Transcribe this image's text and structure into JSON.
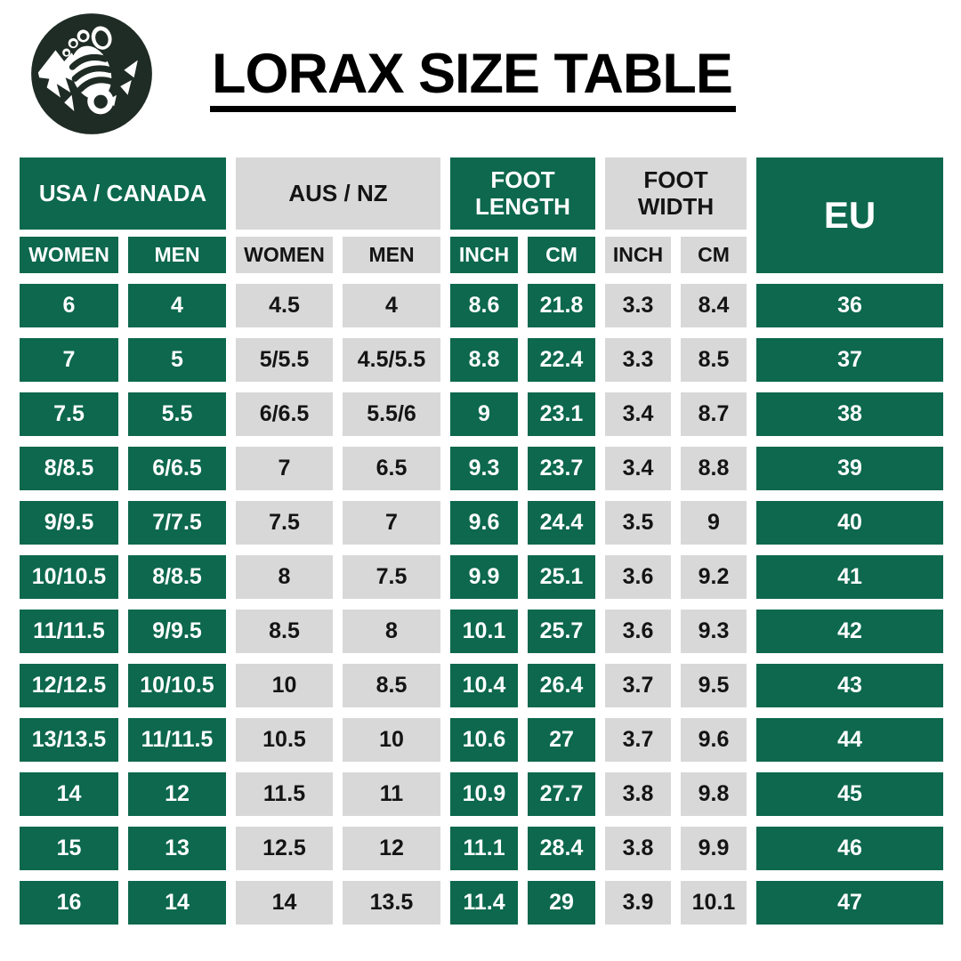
{
  "page": {
    "title": "LORAX SIZE TABLE"
  },
  "logo": {
    "icon": "barefoot-mountains-logo-icon"
  },
  "colors": {
    "green": "#0d684d",
    "gray": "#d8d8d8",
    "logo_dark": "#1f2b25",
    "text_on_green": "#ffffff",
    "text_on_gray": "#141414",
    "title_black": "#000000"
  },
  "table": {
    "groups": [
      {
        "label": "USA / CANADA",
        "style": "green"
      },
      {
        "label": "AUS / NZ",
        "style": "gray"
      },
      {
        "label": "FOOT LENGTH",
        "style": "green"
      },
      {
        "label": "FOOT WIDTH",
        "style": "gray"
      },
      {
        "label": "EU",
        "style": "green"
      }
    ],
    "subheaders": [
      {
        "label": "WOMEN",
        "style": "green"
      },
      {
        "label": "MEN",
        "style": "green"
      },
      {
        "label": "WOMEN",
        "style": "gray"
      },
      {
        "label": "MEN",
        "style": "gray"
      },
      {
        "label": "INCH",
        "style": "green"
      },
      {
        "label": "CM",
        "style": "green"
      },
      {
        "label": "INCH",
        "style": "gray"
      },
      {
        "label": "CM",
        "style": "gray"
      }
    ],
    "column_styles": [
      "green",
      "green",
      "gray",
      "gray",
      "green",
      "green",
      "gray",
      "gray",
      "green"
    ]
  },
  "chart_data": {
    "type": "table",
    "title": "LORAX SIZE TABLE",
    "column_groups": [
      {
        "label": "USA / CANADA",
        "columns": [
          "WOMEN",
          "MEN"
        ]
      },
      {
        "label": "AUS / NZ",
        "columns": [
          "WOMEN",
          "MEN"
        ]
      },
      {
        "label": "FOOT LENGTH",
        "columns": [
          "INCH",
          "CM"
        ]
      },
      {
        "label": "FOOT WIDTH",
        "columns": [
          "INCH",
          "CM"
        ]
      },
      {
        "label": "EU",
        "columns": [
          "EU"
        ]
      }
    ],
    "columns": [
      "USA/CANADA WOMEN",
      "USA/CANADA MEN",
      "AUS/NZ WOMEN",
      "AUS/NZ MEN",
      "FOOT LENGTH INCH",
      "FOOT LENGTH CM",
      "FOOT WIDTH INCH",
      "FOOT WIDTH CM",
      "EU"
    ],
    "rows": [
      [
        "6",
        "4",
        "4.5",
        "4",
        "8.6",
        "21.8",
        "3.3",
        "8.4",
        "36"
      ],
      [
        "7",
        "5",
        "5/5.5",
        "4.5/5.5",
        "8.8",
        "22.4",
        "3.3",
        "8.5",
        "37"
      ],
      [
        "7.5",
        "5.5",
        "6/6.5",
        "5.5/6",
        "9",
        "23.1",
        "3.4",
        "8.7",
        "38"
      ],
      [
        "8/8.5",
        "6/6.5",
        "7",
        "6.5",
        "9.3",
        "23.7",
        "3.4",
        "8.8",
        "39"
      ],
      [
        "9/9.5",
        "7/7.5",
        "7.5",
        "7",
        "9.6",
        "24.4",
        "3.5",
        "9",
        "40"
      ],
      [
        "10/10.5",
        "8/8.5",
        "8",
        "7.5",
        "9.9",
        "25.1",
        "3.6",
        "9.2",
        "41"
      ],
      [
        "11/11.5",
        "9/9.5",
        "8.5",
        "8",
        "10.1",
        "25.7",
        "3.6",
        "9.3",
        "42"
      ],
      [
        "12/12.5",
        "10/10.5",
        "10",
        "8.5",
        "10.4",
        "26.4",
        "3.7",
        "9.5",
        "43"
      ],
      [
        "13/13.5",
        "11/11.5",
        "10.5",
        "10",
        "10.6",
        "27",
        "3.7",
        "9.6",
        "44"
      ],
      [
        "14",
        "12",
        "11.5",
        "11",
        "10.9",
        "27.7",
        "3.8",
        "9.8",
        "45"
      ],
      [
        "15",
        "13",
        "12.5",
        "12",
        "11.1",
        "28.4",
        "3.8",
        "9.9",
        "46"
      ],
      [
        "16",
        "14",
        "14",
        "13.5",
        "11.4",
        "29",
        "3.9",
        "10.1",
        "47"
      ]
    ]
  }
}
